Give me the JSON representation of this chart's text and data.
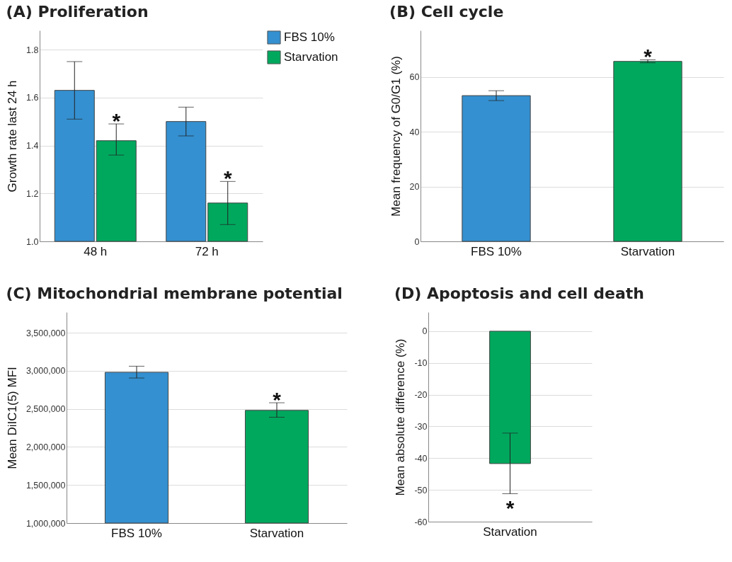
{
  "chart_data": [
    {
      "type": "bar",
      "title": "(A) Proliferation",
      "ylabel": "Growth rate last 24 h",
      "categories": [
        "48 h",
        "72 h"
      ],
      "series": [
        {
          "name": "FBS 10%",
          "color": "#3490d0",
          "values": [
            1.63,
            1.5
          ],
          "errors": [
            [
              1.51,
              1.75
            ],
            [
              1.44,
              1.56
            ]
          ]
        },
        {
          "name": "Starvation",
          "color": "#00a85e",
          "values": [
            1.42,
            1.16
          ],
          "errors": [
            [
              1.36,
              1.49
            ],
            [
              1.07,
              1.25
            ]
          ]
        }
      ],
      "ylim": [
        1.0,
        1.88
      ],
      "yticks": [
        {
          "value": 1.0,
          "label": "1.0"
        },
        1.2,
        1.4,
        1.6,
        1.8
      ],
      "grid": "y",
      "legend": "top right",
      "annotations": [
        {
          "text": "*",
          "x": "48 h",
          "y": 1.49
        },
        {
          "text": "*",
          "x": "72 h",
          "y": 1.25
        }
      ]
    },
    {
      "type": "bar",
      "title": "(B) Cell cycle",
      "ylabel": "Mean frequency of G0/G1 (%)",
      "categories": [
        "FBS 10%",
        "Starvation"
      ],
      "values": [
        53.2,
        65.7
      ],
      "colors": [
        "#3490d0",
        "#00a85e"
      ],
      "errors": [
        [
          51.4,
          55.0
        ],
        [
          65.2,
          66.3
        ]
      ],
      "ylim": [
        0,
        77
      ],
      "yticks": [
        0,
        20,
        40,
        60
      ],
      "grid": "y",
      "annotations": [
        {
          "text": "*",
          "x": "Starvation",
          "y": 66.3
        }
      ]
    },
    {
      "type": "bar",
      "title": "(C) Mitochondrial membrane potential",
      "ylabel": "Mean DiIC1(5) MFI",
      "categories": [
        "FBS 10%",
        "Starvation"
      ],
      "values": [
        2980000,
        2480000
      ],
      "colors": [
        "#3490d0",
        "#00a85e"
      ],
      "errors": [
        [
          2905000,
          3060000
        ],
        [
          2390000,
          2580000
        ]
      ],
      "ylim": [
        1000000,
        3770000
      ],
      "yticks": [
        {
          "value": 1000000,
          "label": "1,000,000"
        },
        {
          "value": 1500000,
          "label": "1,500,000"
        },
        {
          "value": 2000000,
          "label": "2,000,000"
        },
        {
          "value": 2500000,
          "label": "2,500,000"
        },
        {
          "value": 3000000,
          "label": "3,000,000"
        },
        {
          "value": 3500000,
          "label": "3,500,000"
        }
      ],
      "grid": "y",
      "annotations": [
        {
          "text": "*",
          "x": "Starvation",
          "y": 2580000
        }
      ]
    },
    {
      "type": "bar",
      "title": "(D) Apoptosis and cell death",
      "ylabel": "Mean absolute difference (%)",
      "categories": [
        "Starvation"
      ],
      "values": [
        -41.7
      ],
      "colors": [
        "#00a85e"
      ],
      "errors": [
        [
          -51.2,
          -32.1
        ]
      ],
      "ylim": [
        -60,
        6
      ],
      "yticks": [
        0,
        -10,
        -20,
        -30,
        -40,
        -50,
        -60
      ],
      "grid": "y",
      "annotations": [
        {
          "text": "*",
          "x": "Starvation",
          "y": -51.2
        }
      ]
    }
  ]
}
